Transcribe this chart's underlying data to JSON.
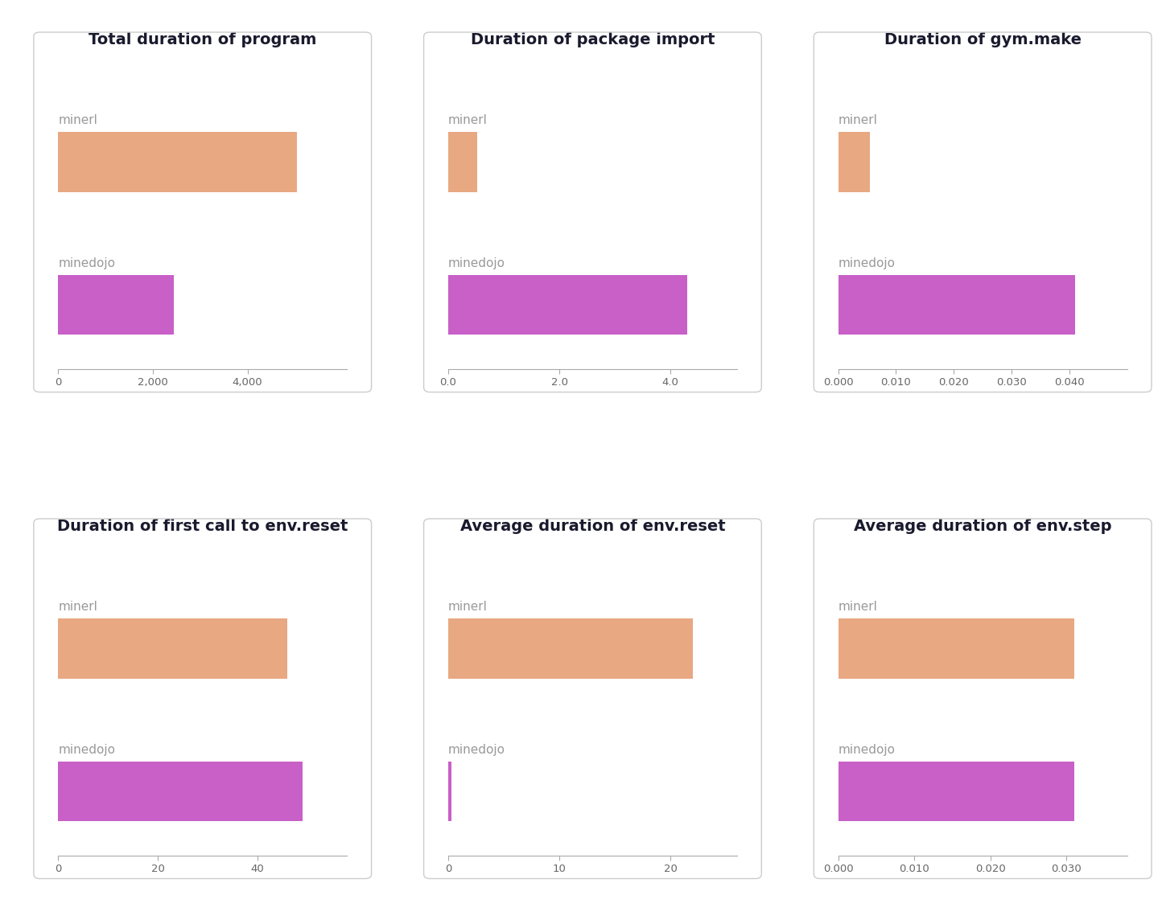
{
  "subplots": [
    {
      "title": "Total duration of program",
      "minerl_value": 5050,
      "minedojo_value": 2450,
      "xlim": [
        0,
        6100
      ],
      "xticks": [
        0,
        2000,
        4000
      ],
      "xticklabels": [
        "0",
        "2,000",
        "4,000"
      ]
    },
    {
      "title": "Duration of package import",
      "minerl_value": 0.52,
      "minedojo_value": 4.3,
      "xlim": [
        0,
        5.2
      ],
      "xticks": [
        0.0,
        2.0,
        4.0
      ],
      "xticklabels": [
        "0.0",
        "2.0",
        "4.0"
      ]
    },
    {
      "title": "Duration of gym.make",
      "minerl_value": 0.0055,
      "minedojo_value": 0.041,
      "xlim": [
        0,
        0.05
      ],
      "xticks": [
        0.0,
        0.01,
        0.02,
        0.03,
        0.04
      ],
      "xticklabels": [
        "0.000",
        "0.010",
        "0.020",
        "0.030",
        "0.040"
      ]
    },
    {
      "title": "Duration of first call to env.reset",
      "minerl_value": 46,
      "minedojo_value": 49,
      "xlim": [
        0,
        58
      ],
      "xticks": [
        0,
        20,
        40
      ],
      "xticklabels": [
        "0",
        "20",
        "40"
      ]
    },
    {
      "title": "Average duration of env.reset",
      "minerl_value": 22,
      "minedojo_value": 0.28,
      "xlim": [
        0,
        26
      ],
      "xticks": [
        0,
        10,
        20
      ],
      "xticklabels": [
        "0",
        "10",
        "20"
      ]
    },
    {
      "title": "Average duration of env.step",
      "minerl_value": 0.031,
      "minedojo_value": 0.031,
      "xlim": [
        0,
        0.038
      ],
      "xticks": [
        0.0,
        0.01,
        0.02,
        0.03
      ],
      "xticklabels": [
        "0.000",
        "0.010",
        "0.020",
        "0.030"
      ]
    }
  ],
  "minerl_color": "#E8A882",
  "minedojo_color": "#C860C8",
  "bar_height": 0.42,
  "label_color": "#999999",
  "title_color": "#1a1a2e",
  "background_color": "#ffffff",
  "title_fontsize": 14,
  "label_fontsize": 11,
  "tick_fontsize": 9.5,
  "border_color": "#cccccc"
}
